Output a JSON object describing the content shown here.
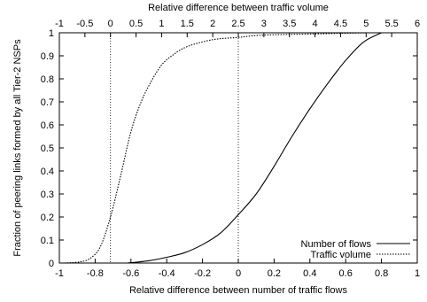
{
  "chart_data": {
    "type": "line",
    "title": "",
    "xlabel": "Relative difference between number of traffic flows",
    "x2label": "Relative difference between traffic volume",
    "ylabel": "Fraction of peering links formed by all Tier-2 NSPs",
    "xlim": [
      -1,
      1
    ],
    "x2lim": [
      -1,
      6
    ],
    "ylim": [
      0,
      1
    ],
    "grid": false,
    "legend_position": "bottom-right",
    "x_ticks": [
      "-1",
      "-0.8",
      "-0.6",
      "-0.4",
      "-0.2",
      "0",
      "0.2",
      "0.4",
      "0.6",
      "0.8",
      "1"
    ],
    "x2_ticks": [
      "-1",
      "-0.5",
      "0",
      "0.5",
      "1",
      "1.5",
      "2",
      "2.5",
      "3",
      "3.5",
      "4",
      "4.5",
      "5",
      "5.5",
      "6"
    ],
    "y_ticks": [
      "0",
      "0.1",
      "0.2",
      "0.3",
      "0.4",
      "0.5",
      "0.6",
      "0.7",
      "0.8",
      "0.9",
      "1"
    ],
    "reference_lines_x2": [
      0,
      2.5
    ],
    "series": [
      {
        "name": "Number of flows",
        "axis": "bottom",
        "style": "solid",
        "x": [
          -0.62,
          -0.5,
          -0.4,
          -0.3,
          -0.2,
          -0.1,
          0,
          0.1,
          0.2,
          0.3,
          0.4,
          0.5,
          0.6,
          0.7,
          0.8
        ],
        "y": [
          0,
          0.01,
          0.025,
          0.045,
          0.08,
          0.13,
          0.21,
          0.3,
          0.42,
          0.55,
          0.67,
          0.78,
          0.88,
          0.96,
          1.0
        ]
      },
      {
        "name": "Traffic volume",
        "axis": "top",
        "style": "dotted",
        "x": [
          -0.9,
          -0.6,
          -0.4,
          -0.2,
          0,
          0.2,
          0.4,
          0.6,
          0.8,
          1.0,
          1.2,
          1.5,
          2.0,
          2.5,
          3.0,
          4.0,
          5.0
        ],
        "y": [
          0,
          0.005,
          0.02,
          0.07,
          0.2,
          0.38,
          0.57,
          0.7,
          0.79,
          0.86,
          0.9,
          0.94,
          0.97,
          0.98,
          0.99,
          0.995,
          1.0
        ]
      }
    ]
  }
}
